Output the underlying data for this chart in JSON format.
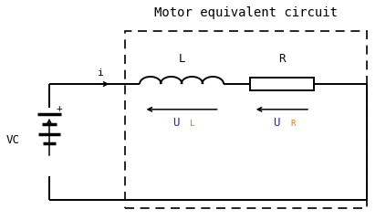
{
  "title": "Motor equivalent circuit",
  "title_fontsize": 10,
  "title_font": "monospace",
  "label_VC": "VC",
  "label_plus": "+",
  "label_i": "i",
  "label_L": "L",
  "label_R": "R",
  "label_UL": "U",
  "label_UL_sub": "L",
  "label_UR": "U",
  "label_UR_sub": "R",
  "bg_color": "#ffffff",
  "line_color": "#000000",
  "UL_color_U": "#2222cc",
  "UL_color_sub": "#cc7700",
  "UR_color_U": "#2222cc",
  "UR_color_sub": "#cc7700",
  "fig_width": 4.23,
  "fig_height": 2.41,
  "dpi": 100
}
